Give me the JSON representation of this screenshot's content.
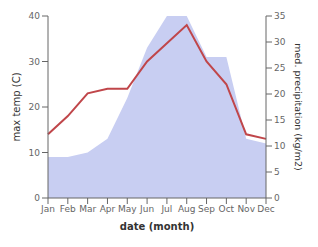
{
  "chart_data": {
    "type": "line",
    "categories": [
      "Jan",
      "Feb",
      "Mar",
      "Apr",
      "May",
      "Jun",
      "Jul",
      "Aug",
      "Sep",
      "Oct",
      "Nov",
      "Dec"
    ],
    "series": [
      {
        "type": "area",
        "color": "#c8cef2",
        "values": [
          9,
          9,
          10,
          13,
          22,
          33,
          40,
          40,
          31,
          31,
          13,
          12
        ]
      },
      {
        "type": "line",
        "color": "#c0464a",
        "values": [
          14,
          18,
          23,
          24,
          24,
          30,
          34,
          38,
          30,
          25,
          14,
          13
        ]
      }
    ],
    "xlabel": "date (month)",
    "ylabel": "max temp (C)",
    "y2label": "med. precipitation (kg/m2)",
    "ylim": [
      0,
      40
    ],
    "yticks": [
      0,
      10,
      20,
      30,
      40
    ],
    "y2lim": [
      0,
      35
    ],
    "y2ticks": [
      0,
      5,
      10,
      15,
      20,
      25,
      30,
      35
    ],
    "grid": false
  }
}
